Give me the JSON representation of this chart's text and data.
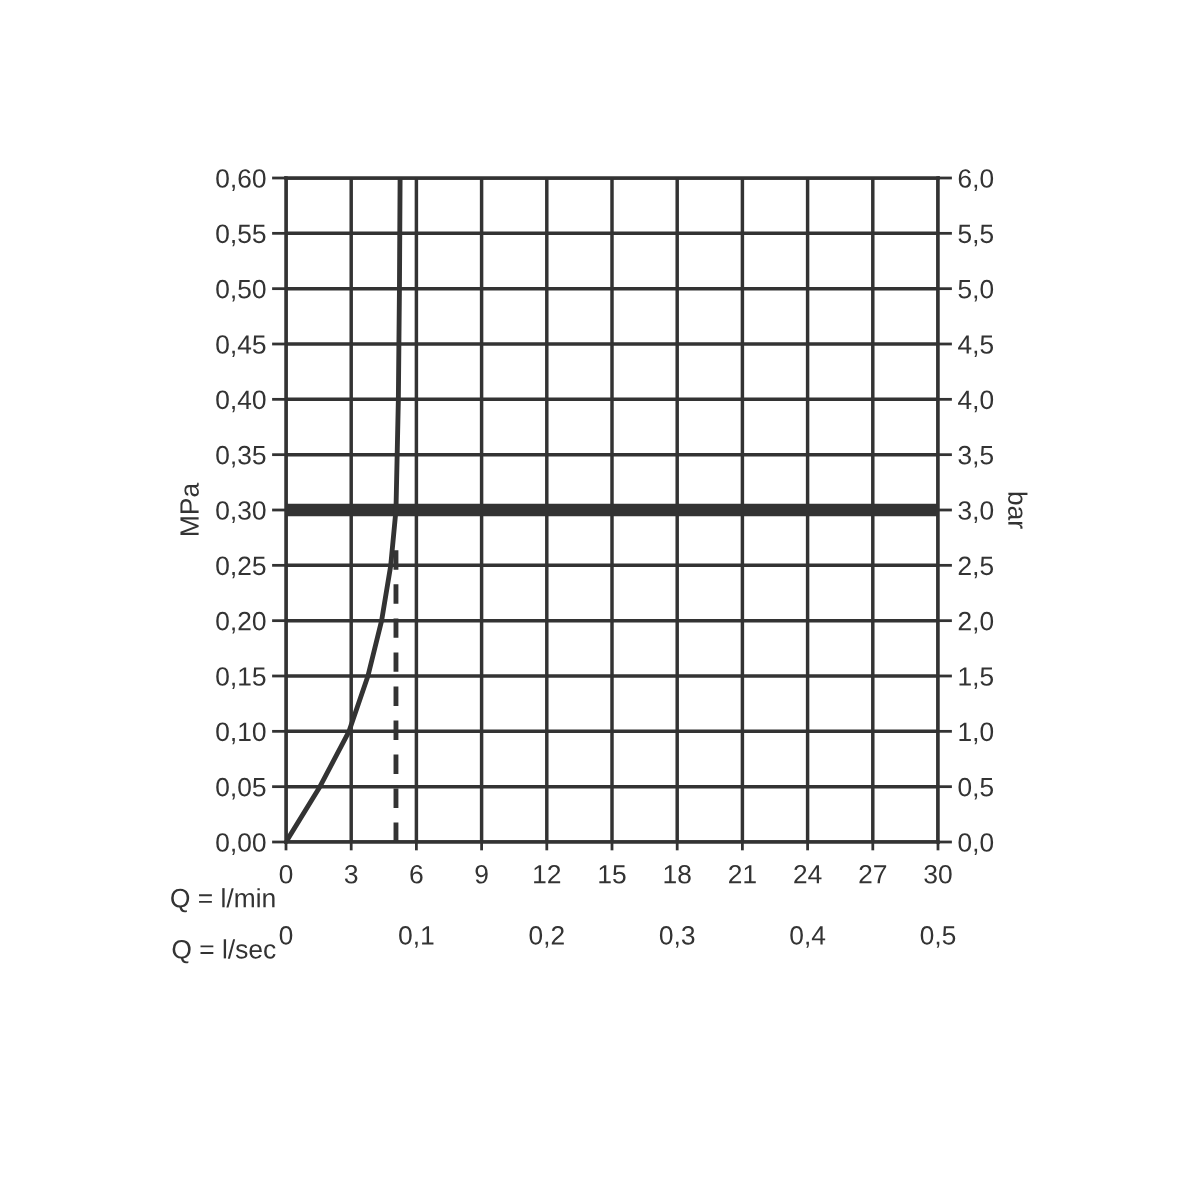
{
  "chart_data": {
    "type": "line",
    "xlabel": "Q = l/min",
    "x2label": "Q = l/sec",
    "ylabel": "MPa",
    "y2label": "bar",
    "series": [
      {
        "color": "#333333",
        "x": [
          0,
          1.56,
          2.9,
          3.77,
          4.4,
          4.82,
          5.06,
          5.17,
          5.22,
          5.25
        ],
        "values": [
          0,
          0.05,
          0.1,
          0.15,
          0.2,
          0.25,
          0.3,
          0.4,
          0.5,
          0.6
        ]
      },
      {
        "color": "#333333",
        "x": [
          5.06,
          5.06
        ],
        "values": [
          0,
          0.275
        ],
        "line_style": "dashed"
      }
    ],
    "ref_lines": [
      {
        "axis": "y",
        "value": 0.3,
        "color": "#333333"
      }
    ],
    "xlim": [
      0,
      30
    ],
    "xticks": [
      0,
      3,
      6,
      9,
      12,
      15,
      18,
      21,
      24,
      27,
      30
    ],
    "x2lim": [
      0,
      0.5
    ],
    "x2ticks": [
      0,
      {
        "value": 0.1,
        "label": "0,1"
      },
      {
        "value": 0.2,
        "label": "0,2"
      },
      {
        "value": 0.3,
        "label": "0,3"
      },
      {
        "value": 0.4,
        "label": "0,4"
      },
      {
        "value": 0.5,
        "label": "0,5"
      }
    ],
    "ylim": [
      0,
      0.6
    ],
    "yticks": [
      {
        "value": 0,
        "label": "0,00"
      },
      {
        "value": 0.05,
        "label": "0,05"
      },
      {
        "value": 0.1,
        "label": "0,10"
      },
      {
        "value": 0.15,
        "label": "0,15"
      },
      {
        "value": 0.2,
        "label": "0,20"
      },
      {
        "value": 0.25,
        "label": "0,25"
      },
      {
        "value": 0.3,
        "label": "0,30"
      },
      {
        "value": 0.35,
        "label": "0,35"
      },
      {
        "value": 0.4,
        "label": "0,40"
      },
      {
        "value": 0.45,
        "label": "0,45"
      },
      {
        "value": 0.5,
        "label": "0,50"
      },
      {
        "value": 0.55,
        "label": "0,55"
      },
      {
        "value": 0.6,
        "label": "0,60"
      }
    ],
    "y2lim": [
      0,
      6
    ],
    "y2ticks": [
      {
        "value": 0,
        "label": "0,0"
      },
      {
        "value": 0.5,
        "label": "0,5"
      },
      {
        "value": 1,
        "label": "1,0"
      },
      {
        "value": 1.5,
        "label": "1,5"
      },
      {
        "value": 2,
        "label": "2,0"
      },
      {
        "value": 2.5,
        "label": "2,5"
      },
      {
        "value": 3,
        "label": "3,0"
      },
      {
        "value": 3.5,
        "label": "3,5"
      },
      {
        "value": 4,
        "label": "4,0"
      },
      {
        "value": 4.5,
        "label": "4,5"
      },
      {
        "value": 5,
        "label": "5,0"
      },
      {
        "value": 5.5,
        "label": "5,5"
      },
      {
        "value": 6,
        "label": "6,0"
      }
    ],
    "grid": true,
    "marker": "none",
    "line_style": "solid"
  }
}
